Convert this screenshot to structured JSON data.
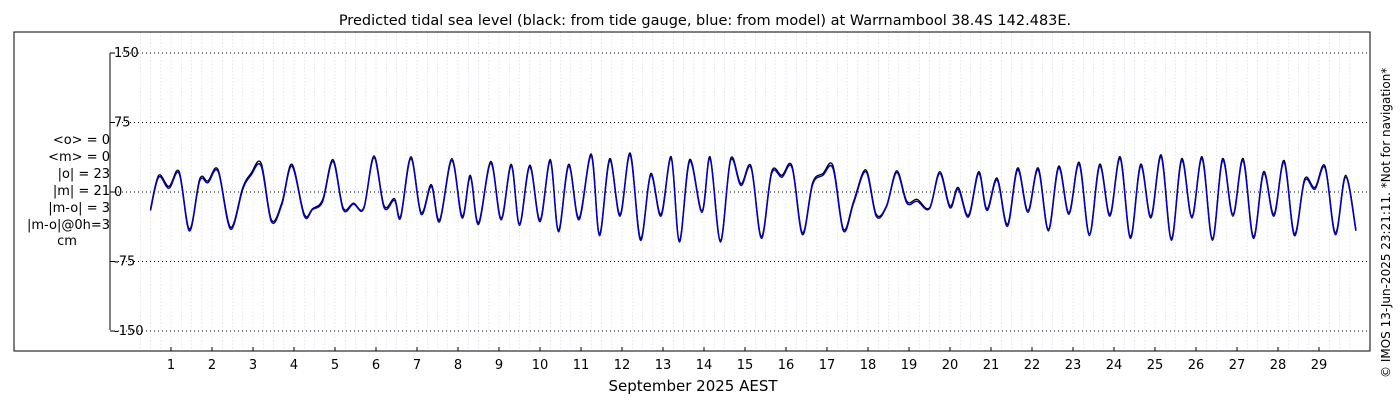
{
  "chart_data": {
    "type": "line",
    "title": "Predicted tidal sea level (black: from tide gauge, blue: from model) at Warrnambool 38.4S 142.483E.",
    "xlabel": "September 2025 AEST",
    "ylabel": "",
    "xlim": [
      0.35,
      29.95
    ],
    "ylim": [
      -160,
      160
    ],
    "yticks": [
      150,
      75,
      0,
      -75,
      -150
    ],
    "ytick_labels": [
      "150",
      "75",
      "0",
      "-75",
      "-150"
    ],
    "xticks": [
      1,
      2,
      3,
      4,
      5,
      6,
      7,
      8,
      9,
      10,
      11,
      12,
      13,
      14,
      15,
      16,
      17,
      18,
      19,
      20,
      21,
      22,
      23,
      24,
      25,
      26,
      27,
      28,
      29
    ],
    "xtick_labels": [
      "1",
      "2",
      "3",
      "4",
      "5",
      "6",
      "7",
      "8",
      "9",
      "10",
      "11",
      "12",
      "13",
      "14",
      "15",
      "16",
      "17",
      "18",
      "19",
      "20",
      "21",
      "22",
      "23",
      "24",
      "25",
      "26",
      "27",
      "28",
      "29"
    ],
    "grid": true,
    "units": "cm",
    "series": [
      {
        "name": "tide gauge",
        "color": "#000000",
        "points": [
          [
            0.5,
            -18
          ],
          [
            0.7,
            18
          ],
          [
            0.95,
            6
          ],
          [
            1.2,
            22
          ],
          [
            1.45,
            -40
          ],
          [
            1.7,
            14
          ],
          [
            1.9,
            12
          ],
          [
            2.15,
            24
          ],
          [
            2.45,
            -38
          ],
          [
            2.75,
            5
          ],
          [
            2.95,
            20
          ],
          [
            3.2,
            31
          ],
          [
            3.45,
            -30
          ],
          [
            3.7,
            -12
          ],
          [
            3.95,
            30
          ],
          [
            4.25,
            -24
          ],
          [
            4.45,
            -18
          ],
          [
            4.7,
            -8
          ],
          [
            4.95,
            35
          ],
          [
            5.2,
            -17
          ],
          [
            5.45,
            -12
          ],
          [
            5.7,
            -17
          ],
          [
            5.95,
            39
          ],
          [
            6.2,
            -15
          ],
          [
            6.45,
            -7
          ],
          [
            6.6,
            -26
          ],
          [
            6.85,
            38
          ],
          [
            7.1,
            -22
          ],
          [
            7.35,
            8
          ],
          [
            7.55,
            -30
          ],
          [
            7.85,
            36
          ],
          [
            8.1,
            -26
          ],
          [
            8.3,
            18
          ],
          [
            8.5,
            -33
          ],
          [
            8.8,
            33
          ],
          [
            9.05,
            -28
          ],
          [
            9.3,
            30
          ],
          [
            9.5,
            -34
          ],
          [
            9.75,
            29
          ],
          [
            10.0,
            -30
          ],
          [
            10.25,
            35
          ],
          [
            10.45,
            -41
          ],
          [
            10.7,
            30
          ],
          [
            10.95,
            -28
          ],
          [
            11.25,
            41
          ],
          [
            11.45,
            -45
          ],
          [
            11.7,
            36
          ],
          [
            11.95,
            -24
          ],
          [
            12.2,
            42
          ],
          [
            12.45,
            -50
          ],
          [
            12.7,
            20
          ],
          [
            12.95,
            -24
          ],
          [
            13.2,
            38
          ],
          [
            13.4,
            -52
          ],
          [
            13.65,
            35
          ],
          [
            13.95,
            -20
          ],
          [
            14.15,
            38
          ],
          [
            14.4,
            -52
          ],
          [
            14.65,
            36
          ],
          [
            14.9,
            9
          ],
          [
            15.15,
            28
          ],
          [
            15.4,
            -48
          ],
          [
            15.65,
            22
          ],
          [
            15.9,
            18
          ],
          [
            16.15,
            28
          ],
          [
            16.4,
            -44
          ],
          [
            16.65,
            10
          ],
          [
            16.9,
            20
          ],
          [
            17.15,
            28
          ],
          [
            17.4,
            -40
          ],
          [
            17.65,
            -10
          ],
          [
            17.95,
            24
          ],
          [
            18.2,
            -24
          ],
          [
            18.45,
            -15
          ],
          [
            18.7,
            23
          ],
          [
            18.95,
            -10
          ],
          [
            19.2,
            -8
          ],
          [
            19.5,
            -17
          ],
          [
            19.75,
            22
          ],
          [
            20.0,
            -15
          ],
          [
            20.2,
            5
          ],
          [
            20.45,
            -25
          ],
          [
            20.7,
            22
          ],
          [
            20.9,
            -18
          ],
          [
            21.15,
            15
          ],
          [
            21.4,
            -35
          ],
          [
            21.65,
            26
          ],
          [
            21.9,
            -20
          ],
          [
            22.15,
            26
          ],
          [
            22.4,
            -40
          ],
          [
            22.65,
            28
          ],
          [
            22.9,
            -22
          ],
          [
            23.15,
            32
          ],
          [
            23.4,
            -45
          ],
          [
            23.65,
            30
          ],
          [
            23.9,
            -24
          ],
          [
            24.15,
            38
          ],
          [
            24.4,
            -48
          ],
          [
            24.65,
            30
          ],
          [
            24.9,
            -26
          ],
          [
            25.15,
            40
          ],
          [
            25.4,
            -50
          ],
          [
            25.65,
            36
          ],
          [
            25.9,
            -26
          ],
          [
            26.15,
            38
          ],
          [
            26.4,
            -50
          ],
          [
            26.65,
            36
          ],
          [
            26.9,
            -24
          ],
          [
            27.15,
            36
          ],
          [
            27.4,
            -48
          ],
          [
            27.65,
            22
          ],
          [
            27.9,
            -24
          ],
          [
            28.15,
            34
          ],
          [
            28.4,
            -45
          ],
          [
            28.65,
            14
          ],
          [
            28.9,
            5
          ],
          [
            29.15,
            28
          ],
          [
            29.4,
            -44
          ],
          [
            29.65,
            18
          ],
          [
            29.9,
            -40
          ]
        ]
      },
      {
        "name": "model",
        "color": "#0000cc",
        "points": [
          [
            0.5,
            -20
          ],
          [
            0.7,
            16
          ],
          [
            0.95,
            4
          ],
          [
            1.2,
            20
          ],
          [
            1.45,
            -42
          ],
          [
            1.7,
            12
          ],
          [
            1.9,
            10
          ],
          [
            2.15,
            22
          ],
          [
            2.45,
            -40
          ],
          [
            2.75,
            3
          ],
          [
            2.95,
            18
          ],
          [
            3.2,
            28
          ],
          [
            3.45,
            -32
          ],
          [
            3.7,
            -14
          ],
          [
            3.95,
            28
          ],
          [
            4.25,
            -26
          ],
          [
            4.45,
            -19
          ],
          [
            4.7,
            -10
          ],
          [
            4.95,
            33
          ],
          [
            5.2,
            -19
          ],
          [
            5.45,
            -13
          ],
          [
            5.7,
            -18
          ],
          [
            5.95,
            37
          ],
          [
            6.2,
            -17
          ],
          [
            6.45,
            -9
          ],
          [
            6.6,
            -28
          ],
          [
            6.85,
            36
          ],
          [
            7.1,
            -24
          ],
          [
            7.35,
            6
          ],
          [
            7.55,
            -32
          ],
          [
            7.85,
            34
          ],
          [
            8.1,
            -28
          ],
          [
            8.3,
            16
          ],
          [
            8.5,
            -35
          ],
          [
            8.8,
            31
          ],
          [
            9.05,
            -30
          ],
          [
            9.3,
            28
          ],
          [
            9.5,
            -36
          ],
          [
            9.75,
            27
          ],
          [
            10.0,
            -32
          ],
          [
            10.25,
            33
          ],
          [
            10.45,
            -43
          ],
          [
            10.7,
            28
          ],
          [
            10.95,
            -30
          ],
          [
            11.25,
            39
          ],
          [
            11.45,
            -47
          ],
          [
            11.7,
            34
          ],
          [
            11.95,
            -26
          ],
          [
            12.2,
            40
          ],
          [
            12.45,
            -52
          ],
          [
            12.7,
            18
          ],
          [
            12.95,
            -26
          ],
          [
            13.2,
            36
          ],
          [
            13.4,
            -54
          ],
          [
            13.65,
            33
          ],
          [
            13.95,
            -22
          ],
          [
            14.15,
            36
          ],
          [
            14.4,
            -54
          ],
          [
            14.65,
            34
          ],
          [
            14.9,
            7
          ],
          [
            15.15,
            26
          ],
          [
            15.4,
            -50
          ],
          [
            15.65,
            20
          ],
          [
            15.9,
            16
          ],
          [
            16.15,
            26
          ],
          [
            16.4,
            -46
          ],
          [
            16.65,
            8
          ],
          [
            16.9,
            18
          ],
          [
            17.15,
            25
          ],
          [
            17.4,
            -42
          ],
          [
            17.65,
            -12
          ],
          [
            17.95,
            22
          ],
          [
            18.2,
            -26
          ],
          [
            18.45,
            -16
          ],
          [
            18.7,
            21
          ],
          [
            18.95,
            -12
          ],
          [
            19.2,
            -10
          ],
          [
            19.5,
            -18
          ],
          [
            19.75,
            20
          ],
          [
            20.0,
            -17
          ],
          [
            20.2,
            3
          ],
          [
            20.45,
            -27
          ],
          [
            20.7,
            20
          ],
          [
            20.9,
            -20
          ],
          [
            21.15,
            13
          ],
          [
            21.4,
            -37
          ],
          [
            21.65,
            24
          ],
          [
            21.9,
            -22
          ],
          [
            22.15,
            24
          ],
          [
            22.4,
            -42
          ],
          [
            22.65,
            26
          ],
          [
            22.9,
            -24
          ],
          [
            23.15,
            30
          ],
          [
            23.4,
            -47
          ],
          [
            23.65,
            28
          ],
          [
            23.9,
            -26
          ],
          [
            24.15,
            36
          ],
          [
            24.4,
            -50
          ],
          [
            24.65,
            28
          ],
          [
            24.9,
            -28
          ],
          [
            25.15,
            38
          ],
          [
            25.4,
            -52
          ],
          [
            25.65,
            34
          ],
          [
            25.9,
            -28
          ],
          [
            26.15,
            36
          ],
          [
            26.4,
            -52
          ],
          [
            26.65,
            34
          ],
          [
            26.9,
            -26
          ],
          [
            27.15,
            34
          ],
          [
            27.4,
            -50
          ],
          [
            27.65,
            20
          ],
          [
            27.9,
            -26
          ],
          [
            28.15,
            32
          ],
          [
            28.4,
            -47
          ],
          [
            28.65,
            12
          ],
          [
            28.9,
            3
          ],
          [
            29.15,
            26
          ],
          [
            29.4,
            -46
          ],
          [
            29.65,
            16
          ],
          [
            29.9,
            -42
          ]
        ]
      }
    ]
  },
  "stats": {
    "mean_obs": "<o> = 0",
    "mean_model": "<m> = 0",
    "abs_obs": "|o| = 23",
    "abs_model": "|m| = 21",
    "abs_diff": "|m-o| = 3",
    "abs_diff_0h": "|m-o|@0h=3",
    "unit": "cm"
  },
  "credit": "© IMOS 13-Jun-2025 23:21:11. *Not for navigation*"
}
